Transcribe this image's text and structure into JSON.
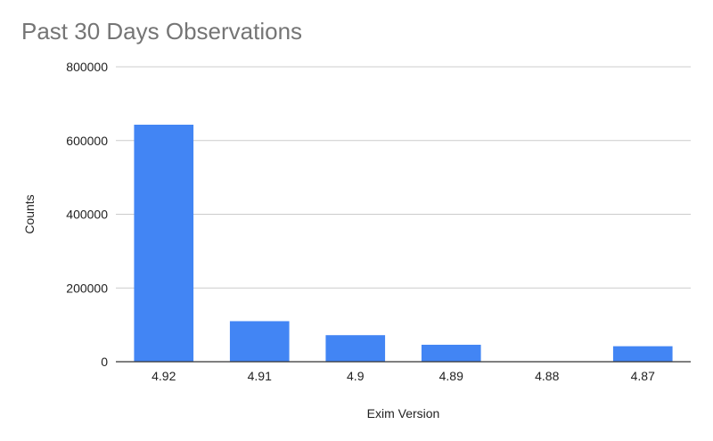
{
  "chart_data": {
    "type": "bar",
    "title": "Past 30 Days Observations",
    "xlabel": "Exim Version",
    "ylabel": "Counts",
    "categories": [
      "4.92",
      "4.91",
      "4.9",
      "4.89",
      "4.88",
      "4.87"
    ],
    "values": [
      643000,
      110000,
      72000,
      46000,
      1000,
      42000
    ],
    "ylim": [
      0,
      800000
    ],
    "yticks": [
      "0",
      "200000",
      "400000",
      "600000",
      "800000"
    ],
    "grid": true,
    "legend": "none",
    "bar_color": "#4285f4",
    "grid_color": "#cccccc",
    "axis_color": "#333333"
  }
}
